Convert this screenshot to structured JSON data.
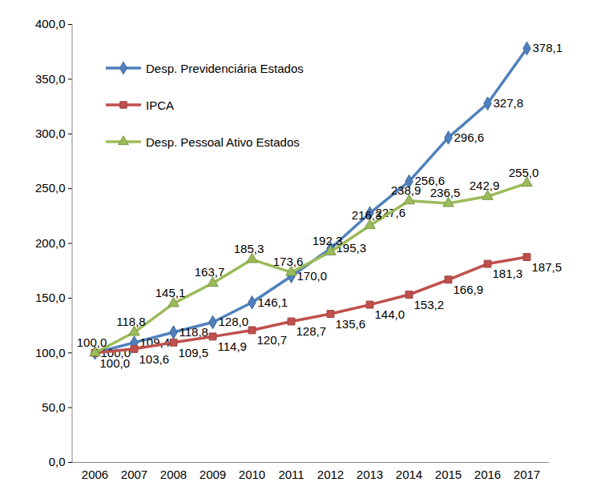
{
  "chart_data": {
    "type": "line",
    "categories": [
      "2006",
      "2007",
      "2008",
      "2009",
      "2010",
      "2011",
      "2012",
      "2013",
      "2014",
      "2015",
      "2016",
      "2017"
    ],
    "series": [
      {
        "name": "Desp. Previdenciária Estados",
        "color": "#4F81BD",
        "marker": "diamond",
        "line_style": "solid",
        "values": [
          100.0,
          109.4,
          118.8,
          128.0,
          146.1,
          170.0,
          195.3,
          227.6,
          256.6,
          296.6,
          327.8,
          378.1
        ],
        "value_labels": [
          "100,0",
          "109,4",
          "118,8",
          "128,0",
          "146,1",
          "170,0",
          "195,3",
          "227,6",
          "256,6",
          "296,6",
          "327,8",
          "378,1"
        ]
      },
      {
        "name": "IPCA",
        "color": "#C0504D",
        "marker": "square",
        "line_style": "solid",
        "values": [
          100.0,
          103.6,
          109.5,
          114.9,
          120.7,
          128.7,
          135.6,
          144.0,
          153.2,
          166.9,
          181.3,
          187.5
        ],
        "value_labels": [
          "100,0",
          "103,6",
          "109,5",
          "114,9",
          "120,7",
          "128,7",
          "135,6",
          "144,0",
          "153,2",
          "166,9",
          "181,3",
          "187,5"
        ]
      },
      {
        "name": "Desp. Pessoal Ativo Estados",
        "color": "#9BBB59",
        "marker": "triangle",
        "line_style": "solid",
        "values": [
          100.0,
          118.8,
          145.1,
          163.7,
          185.3,
          173.6,
          192.3,
          216.3,
          238.9,
          236.5,
          242.9,
          255.0
        ],
        "value_labels": [
          "100,0",
          "118,8",
          "145,1",
          "163,7",
          "185,3",
          "173,6",
          "192,3",
          "216,3",
          "238,9",
          "236,5",
          "242,9",
          "255,0"
        ]
      }
    ],
    "ylim": [
      0,
      400
    ],
    "yticks": [
      {
        "value": 0,
        "label": "0,0"
      },
      {
        "value": 50,
        "label": "50,0"
      },
      {
        "value": 100,
        "label": "100,0"
      },
      {
        "value": 150,
        "label": "150,0"
      },
      {
        "value": 200,
        "label": "200,0"
      },
      {
        "value": 250,
        "label": "250,0"
      },
      {
        "value": 300,
        "label": "300,0"
      },
      {
        "value": 350,
        "label": "350,0"
      },
      {
        "value": 400,
        "label": "400,0"
      }
    ],
    "grid": false,
    "legend": "top-left",
    "data_labels": true
  }
}
